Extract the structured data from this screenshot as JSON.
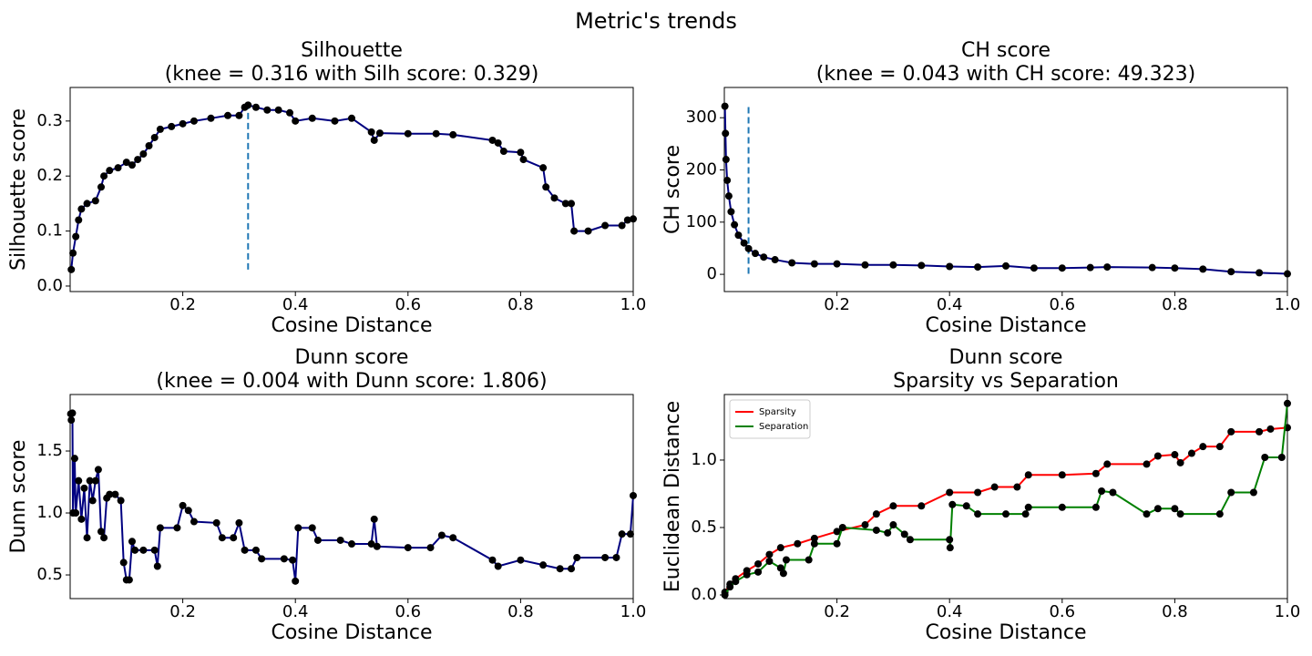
{
  "title": "Metric's trends",
  "chart_data": [
    {
      "type": "line",
      "title": "Silhouette",
      "subtitle": "(knee = 0.316 with Silh score: 0.329)",
      "xlabel": "Cosine Distance",
      "ylabel": "Silhouette score",
      "xlim": [
        0,
        1
      ],
      "ylim": [
        -0.01,
        0.361
      ],
      "xticks": [
        0.2,
        0.4,
        0.6,
        0.8,
        {
          "value": 1,
          "label": "1.0"
        }
      ],
      "yticks": [
        {
          "value": 0,
          "label": "0.0"
        },
        0.1,
        0.2,
        0.3
      ],
      "knee": 0.316,
      "knee_color": "#1f77b4",
      "marker_color": "#000000",
      "series": [
        {
          "color": "#000080",
          "x": [
            0.002,
            0.005,
            0.01,
            0.015,
            0.02,
            0.03,
            0.045,
            0.055,
            0.06,
            0.07,
            0.085,
            0.1,
            0.11,
            0.12,
            0.13,
            0.14,
            0.15,
            0.16,
            0.18,
            0.2,
            0.22,
            0.25,
            0.28,
            0.3,
            0.31,
            0.316,
            0.33,
            0.35,
            0.37,
            0.39,
            0.4,
            0.43,
            0.47,
            0.5,
            0.535,
            0.54,
            0.55,
            0.6,
            0.65,
            0.68,
            0.75,
            0.76,
            0.77,
            0.8,
            0.805,
            0.84,
            0.845,
            0.86,
            0.88,
            0.89,
            0.895,
            0.92,
            0.95,
            0.98,
            0.99,
            1.0
          ],
          "values": [
            0.03,
            0.06,
            0.09,
            0.12,
            0.14,
            0.15,
            0.155,
            0.18,
            0.2,
            0.21,
            0.215,
            0.225,
            0.22,
            0.23,
            0.24,
            0.255,
            0.27,
            0.285,
            0.29,
            0.295,
            0.3,
            0.305,
            0.31,
            0.31,
            0.325,
            0.329,
            0.325,
            0.32,
            0.32,
            0.315,
            0.3,
            0.305,
            0.3,
            0.305,
            0.28,
            0.265,
            0.278,
            0.277,
            0.277,
            0.275,
            0.265,
            0.26,
            0.245,
            0.243,
            0.23,
            0.215,
            0.18,
            0.16,
            0.15,
            0.15,
            0.1,
            0.1,
            0.11,
            0.11,
            0.12,
            0.122
          ]
        }
      ]
    },
    {
      "type": "line",
      "title": "CH score",
      "subtitle": "(knee = 0.043 with CH score: 49.323)",
      "xlabel": "Cosine Distance",
      "ylabel": "CH score",
      "xlim": [
        0,
        1
      ],
      "ylim": [
        -33,
        358
      ],
      "xticks": [
        0.2,
        0.4,
        0.6,
        0.8,
        {
          "value": 1,
          "label": "1.0"
        }
      ],
      "yticks": [
        0,
        100,
        200,
        300
      ],
      "knee": 0.043,
      "knee_color": "#1f77b4",
      "marker_color": "#000000",
      "series": [
        {
          "color": "#000080",
          "x": [
            0.001,
            0.002,
            0.003,
            0.005,
            0.008,
            0.012,
            0.018,
            0.025,
            0.035,
            0.043,
            0.055,
            0.07,
            0.09,
            0.12,
            0.16,
            0.2,
            0.25,
            0.3,
            0.35,
            0.4,
            0.45,
            0.5,
            0.55,
            0.6,
            0.65,
            0.68,
            0.76,
            0.8,
            0.85,
            0.9,
            0.95,
            1.0
          ],
          "values": [
            322,
            270,
            220,
            180,
            150,
            120,
            95,
            75,
            60,
            49.3,
            40,
            33,
            28,
            22,
            20,
            20,
            18,
            18,
            17,
            15,
            14,
            16,
            12,
            12,
            13,
            14,
            13,
            12,
            10,
            5,
            3,
            1
          ]
        }
      ]
    },
    {
      "type": "line",
      "title": "Dunn score",
      "subtitle": "(knee = 0.004 with Dunn score: 1.806)",
      "xlabel": "Cosine Distance",
      "ylabel": "Dunn score",
      "xlim": [
        0,
        1
      ],
      "ylim": [
        0.309,
        1.956
      ],
      "xticks": [
        0.2,
        0.4,
        0.6,
        0.8,
        {
          "value": 1,
          "label": "1.0"
        }
      ],
      "yticks": [
        0.5,
        {
          "value": 1,
          "label": "1.0"
        },
        1.5
      ],
      "marker_color": "#000000",
      "series": [
        {
          "color": "#000080",
          "x": [
            0.001,
            0.002,
            0.004,
            0.005,
            0.008,
            0.01,
            0.015,
            0.02,
            0.025,
            0.03,
            0.035,
            0.04,
            0.045,
            0.05,
            0.055,
            0.06,
            0.065,
            0.07,
            0.08,
            0.09,
            0.095,
            0.1,
            0.105,
            0.11,
            0.115,
            0.13,
            0.15,
            0.155,
            0.16,
            0.19,
            0.2,
            0.21,
            0.22,
            0.26,
            0.27,
            0.29,
            0.3,
            0.31,
            0.33,
            0.34,
            0.38,
            0.395,
            0.4,
            0.405,
            0.43,
            0.44,
            0.48,
            0.5,
            0.535,
            0.54,
            0.545,
            0.6,
            0.64,
            0.66,
            0.68,
            0.75,
            0.76,
            0.8,
            0.84,
            0.87,
            0.89,
            0.9,
            0.95,
            0.97,
            0.98,
            0.995,
            1.0
          ],
          "values": [
            1.8,
            1.75,
            1.806,
            1.0,
            1.44,
            1.0,
            1.26,
            0.95,
            1.2,
            0.8,
            1.26,
            1.1,
            1.26,
            1.35,
            0.85,
            0.8,
            1.12,
            1.15,
            1.15,
            1.1,
            0.6,
            0.46,
            0.46,
            0.77,
            0.7,
            0.7,
            0.7,
            0.57,
            0.88,
            0.88,
            1.06,
            1.02,
            0.93,
            0.92,
            0.8,
            0.8,
            0.92,
            0.7,
            0.7,
            0.63,
            0.63,
            0.62,
            0.45,
            0.88,
            0.88,
            0.78,
            0.78,
            0.75,
            0.75,
            0.95,
            0.73,
            0.72,
            0.72,
            0.82,
            0.8,
            0.62,
            0.57,
            0.62,
            0.58,
            0.55,
            0.55,
            0.64,
            0.64,
            0.64,
            0.83,
            0.83,
            1.14
          ]
        }
      ]
    },
    {
      "type": "line",
      "title": "Dunn score",
      "subtitle": "Sparsity vs Separation",
      "xlabel": "Cosine Distance",
      "ylabel": "Euclidean Distance",
      "xlim": [
        0,
        1
      ],
      "ylim": [
        -0.027,
        1.486
      ],
      "xticks": [
        0.2,
        0.4,
        0.6,
        0.8,
        {
          "value": 1,
          "label": "1.0"
        }
      ],
      "yticks": [
        {
          "value": 0,
          "label": "0.0"
        },
        0.5,
        {
          "value": 1,
          "label": "1.0"
        }
      ],
      "legend": "upper left",
      "marker_color": "#000000",
      "series": [
        {
          "name": "Sparsity",
          "color": "#ff0000",
          "x": [
            0.001,
            0.01,
            0.02,
            0.04,
            0.06,
            0.08,
            0.1,
            0.13,
            0.16,
            0.2,
            0.25,
            0.27,
            0.3,
            0.35,
            0.4,
            0.45,
            0.48,
            0.52,
            0.54,
            0.6,
            0.66,
            0.68,
            0.75,
            0.77,
            0.8,
            0.81,
            0.83,
            0.85,
            0.88,
            0.9,
            0.95,
            0.97,
            1.0
          ],
          "values": [
            0.02,
            0.08,
            0.12,
            0.18,
            0.23,
            0.3,
            0.35,
            0.38,
            0.42,
            0.47,
            0.52,
            0.6,
            0.66,
            0.66,
            0.76,
            0.76,
            0.8,
            0.8,
            0.89,
            0.89,
            0.9,
            0.97,
            0.97,
            1.03,
            1.04,
            0.98,
            1.05,
            1.1,
            1.1,
            1.21,
            1.21,
            1.23,
            1.24
          ]
        },
        {
          "name": "Separation",
          "color": "#008000",
          "x": [
            0.001,
            0.01,
            0.02,
            0.04,
            0.06,
            0.08,
            0.1,
            0.105,
            0.11,
            0.15,
            0.16,
            0.2,
            0.21,
            0.27,
            0.29,
            0.3,
            0.32,
            0.33,
            0.4,
            0.401,
            0.405,
            0.43,
            0.45,
            0.5,
            0.535,
            0.54,
            0.6,
            0.66,
            0.67,
            0.69,
            0.75,
            0.77,
            0.8,
            0.81,
            0.88,
            0.9,
            0.94,
            0.96,
            0.99,
            1.0
          ],
          "values": [
            0.0,
            0.06,
            0.1,
            0.15,
            0.17,
            0.25,
            0.2,
            0.16,
            0.26,
            0.26,
            0.38,
            0.38,
            0.5,
            0.48,
            0.46,
            0.52,
            0.45,
            0.41,
            0.41,
            0.35,
            0.67,
            0.66,
            0.6,
            0.6,
            0.6,
            0.65,
            0.65,
            0.65,
            0.77,
            0.76,
            0.6,
            0.64,
            0.64,
            0.6,
            0.6,
            0.76,
            0.76,
            1.02,
            1.02,
            1.42
          ]
        }
      ]
    }
  ]
}
